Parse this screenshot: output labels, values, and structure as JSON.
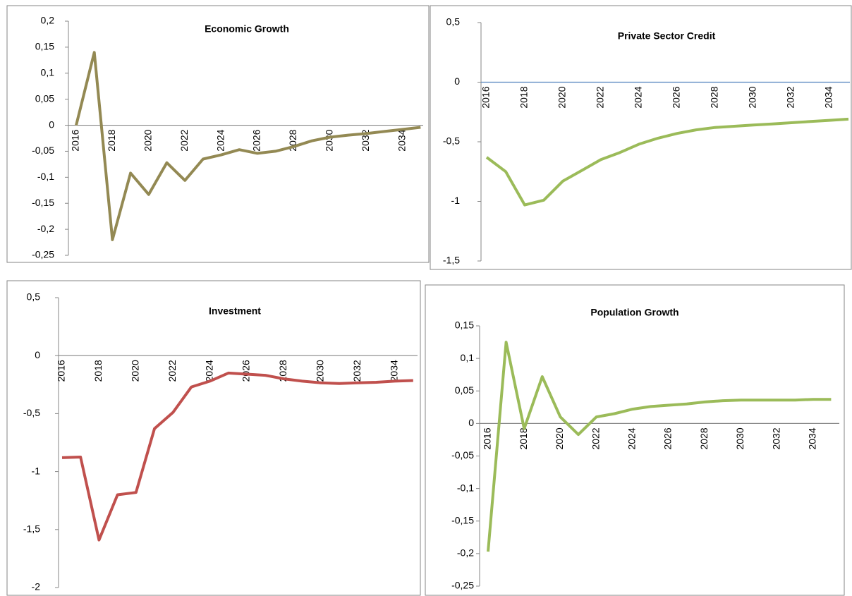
{
  "chart_data": [
    {
      "type": "line",
      "title": "Economic Growth",
      "categories": [
        "2016",
        null,
        "2018",
        null,
        "2020",
        null,
        "2022",
        null,
        "2024",
        null,
        "2026",
        null,
        "2028",
        null,
        "2030",
        null,
        "2032",
        null,
        "2034",
        null
      ],
      "series": [
        {
          "name": "Economic Growth",
          "color": "#938953",
          "values": [
            0,
            0.14,
            -0.22,
            -0.092,
            -0.133,
            -0.072,
            -0.106,
            -0.065,
            -0.057,
            -0.047,
            -0.054,
            -0.05,
            -0.041,
            -0.03,
            -0.023,
            -0.019,
            -0.016,
            -0.012,
            -0.008,
            -0.004
          ]
        }
      ],
      "ylim": [
        -0.25,
        0.2
      ],
      "yticks": [
        {
          "value": -0.25,
          "label": "-0,25"
        },
        {
          "value": -0.2,
          "label": "-0,2"
        },
        {
          "value": -0.15,
          "label": "-0,15"
        },
        {
          "value": -0.1,
          "label": "-0,1"
        },
        {
          "value": -0.05,
          "label": "-0,05"
        },
        0,
        {
          "value": 0.05,
          "label": "0,05"
        },
        {
          "value": 0.1,
          "label": "0,1"
        },
        {
          "value": 0.15,
          "label": "0,15"
        },
        {
          "value": 0.2,
          "label": "0,2"
        }
      ],
      "axis_color": "#868686",
      "grid": false
    },
    {
      "type": "line",
      "title": "Private Sector Credit",
      "categories": [
        "2016",
        null,
        "2018",
        null,
        "2020",
        null,
        "2022",
        null,
        "2024",
        null,
        "2026",
        null,
        "2028",
        null,
        "2030",
        null,
        "2032",
        null,
        "2034",
        null
      ],
      "series": [
        {
          "name": "Private Sector Credit",
          "color": "#9bbb59",
          "values": [
            -0.63,
            -0.75,
            -1.03,
            -0.99,
            -0.83,
            -0.74,
            -0.65,
            -0.59,
            -0.52,
            -0.47,
            -0.43,
            -0.4,
            -0.38,
            -0.37,
            -0.36,
            -0.35,
            -0.34,
            -0.33,
            -0.32,
            -0.31
          ]
        }
      ],
      "ylim": [
        -1.5,
        0.5
      ],
      "yticks": [
        {
          "value": -1.5,
          "label": "-1,5"
        },
        -1,
        {
          "value": -0.5,
          "label": "-0,5"
        },
        0,
        {
          "value": 0.5,
          "label": "0,5"
        }
      ],
      "axis_color": "#4f81bd",
      "grid": false
    },
    {
      "type": "line",
      "title": "Investment",
      "categories": [
        "2016",
        null,
        "2018",
        null,
        "2020",
        null,
        "2022",
        null,
        "2024",
        null,
        "2026",
        null,
        "2028",
        null,
        "2030",
        null,
        "2032",
        null,
        "2034",
        null
      ],
      "series": [
        {
          "name": "Investment",
          "color": "#c0504d",
          "values": [
            -0.88,
            -0.875,
            -1.59,
            -1.2,
            -1.18,
            -0.63,
            -0.49,
            -0.27,
            -0.22,
            -0.15,
            -0.16,
            -0.17,
            -0.2,
            -0.22,
            -0.235,
            -0.24,
            -0.235,
            -0.23,
            -0.22,
            -0.215
          ]
        }
      ],
      "ylim": [
        -2,
        0.5
      ],
      "yticks": [
        -2,
        {
          "value": -1.5,
          "label": "-1,5"
        },
        -1,
        {
          "value": -0.5,
          "label": "-0,5"
        },
        0,
        {
          "value": 0.5,
          "label": "0,5"
        }
      ],
      "axis_color": "#868686",
      "grid": false
    },
    {
      "type": "line",
      "title": "Population Growth",
      "categories": [
        "2016",
        null,
        "2018",
        null,
        "2020",
        null,
        "2022",
        null,
        "2024",
        null,
        "2026",
        null,
        "2028",
        null,
        "2030",
        null,
        "2032",
        null,
        "2034",
        null
      ],
      "series": [
        {
          "name": "Population Growth",
          "color": "#9bbb59",
          "values": [
            -0.197,
            0.125,
            -0.008,
            0.072,
            0.01,
            -0.017,
            0.01,
            0.015,
            0.022,
            0.026,
            0.028,
            0.03,
            0.033,
            0.035,
            0.036,
            0.036,
            0.036,
            0.036,
            0.037,
            0.037
          ]
        }
      ],
      "ylim": [
        -0.25,
        0.15
      ],
      "yticks": [
        {
          "value": -0.25,
          "label": "-0,25"
        },
        {
          "value": -0.2,
          "label": "-0,2"
        },
        {
          "value": -0.15,
          "label": "-0,15"
        },
        {
          "value": -0.1,
          "label": "-0,1"
        },
        {
          "value": -0.05,
          "label": "-0,05"
        },
        0,
        {
          "value": 0.05,
          "label": "0,05"
        },
        {
          "value": 0.1,
          "label": "0,1"
        },
        {
          "value": 0.15,
          "label": "0,15"
        }
      ],
      "axis_color": "#868686",
      "grid": false
    }
  ]
}
